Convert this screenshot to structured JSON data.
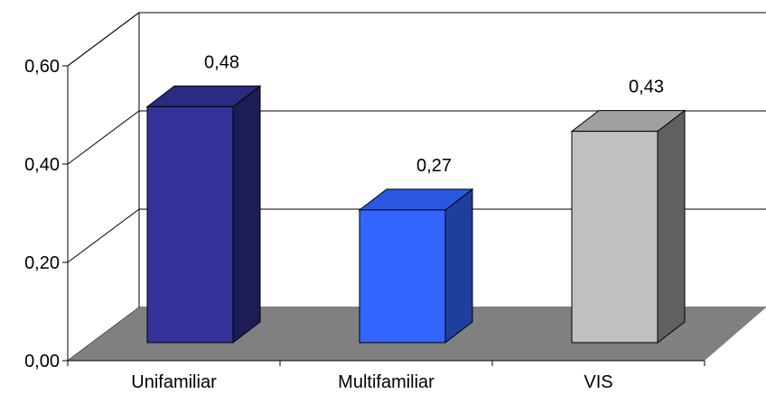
{
  "chart_data": {
    "type": "bar",
    "categories": [
      "Unifamiliar",
      "Multifamiliar",
      "VIS"
    ],
    "values": [
      0.48,
      0.27,
      0.43
    ],
    "value_labels": [
      "0,48",
      "0,27",
      "0,43"
    ],
    "y_ticks": [
      {
        "value": 0.0,
        "label": "0,00"
      },
      {
        "value": 0.2,
        "label": "0,20"
      },
      {
        "value": 0.4,
        "label": "0,40"
      },
      {
        "value": 0.6,
        "label": "0,60"
      }
    ],
    "ylim": [
      0,
      0.6
    ],
    "grid": true,
    "legend": "none",
    "three_d": true,
    "colors": {
      "Unifamiliar": {
        "front": "#333399",
        "top": "#2B2B84",
        "side": "#1D1D55"
      },
      "Multifamiliar": {
        "front": "#3366FF",
        "top": "#2B57E0",
        "side": "#1F3F9F"
      },
      "VIS": {
        "front": "#C0C0C0",
        "top": "#A0A0A0",
        "side": "#606060"
      },
      "floor": "#808080",
      "walls": "#FFFFFF",
      "lines": "#000000"
    },
    "title": "",
    "xlabel": "",
    "ylabel": ""
  }
}
